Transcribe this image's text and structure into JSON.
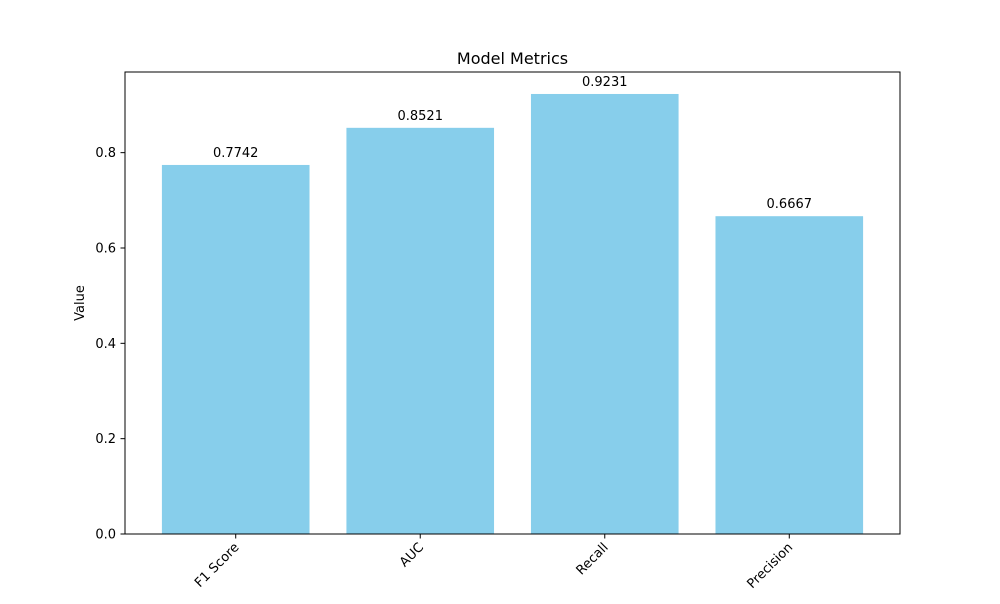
{
  "chart_data": {
    "type": "bar",
    "title": "Model Metrics",
    "xlabel": "",
    "ylabel": "Value",
    "categories": [
      "F1 Score",
      "AUC",
      "Recall",
      "Precision"
    ],
    "values": [
      0.7742,
      0.8521,
      0.9231,
      0.6667
    ],
    "value_labels": [
      "0.7742",
      "0.8521",
      "0.9231",
      "0.6667"
    ],
    "ylim": [
      0,
      0.9692
    ],
    "yticks": [
      0.0,
      0.2,
      0.4,
      0.6,
      0.8
    ],
    "ytick_labels": [
      "0.0",
      "0.2",
      "0.4",
      "0.6",
      "0.8"
    ],
    "bar_color": "#87ceeb",
    "x_tick_rotation_deg": 45,
    "grid": false,
    "legend": "none"
  }
}
